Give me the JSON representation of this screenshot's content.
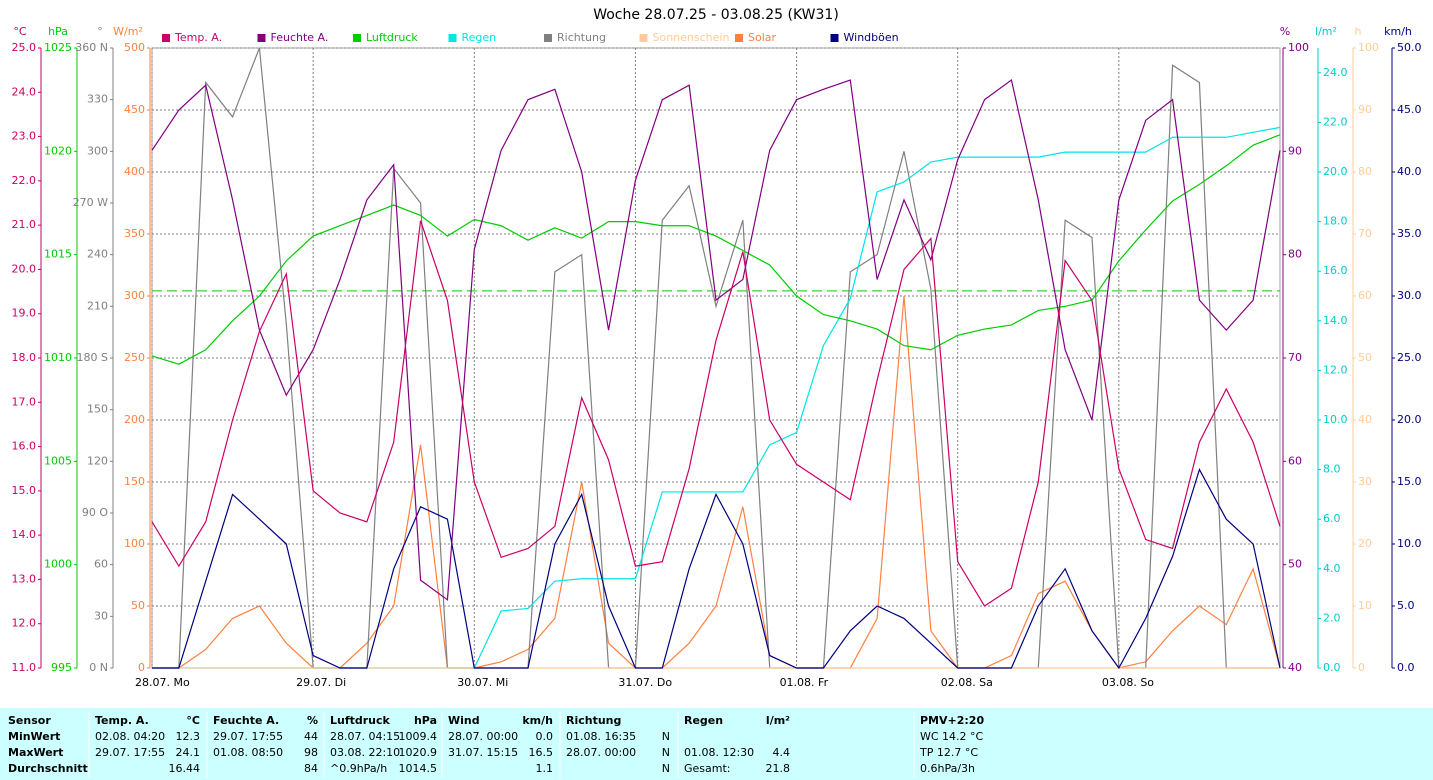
{
  "chart_data": {
    "type": "line",
    "title": "Woche 28.07.25 - 03.08.25 (KW31)",
    "xlim": [
      0,
      168
    ],
    "xticks": [
      {
        "value": 0,
        "label": "28.07. Mo"
      },
      {
        "value": 24,
        "label": "29.07. Di"
      },
      {
        "value": 48,
        "label": "30.07. Mi"
      },
      {
        "value": 72,
        "label": "31.07. Do"
      },
      {
        "value": 96,
        "label": "01.08. Fr"
      },
      {
        "value": 120,
        "label": "02.08. Sa"
      },
      {
        "value": 144,
        "label": "03.08. So"
      }
    ],
    "grid": true,
    "pressure_reference": 1013.25,
    "axes": [
      {
        "label": "°C",
        "color": "#cc0066",
        "lim": [
          11,
          25
        ],
        "ticks": [
          {
            "value": 11,
            "label": "11.0"
          },
          {
            "value": 12,
            "label": "12.0"
          },
          {
            "value": 13,
            "label": "13.0"
          },
          {
            "value": 14,
            "label": "14.0"
          },
          {
            "value": 15,
            "label": "15.0"
          },
          {
            "value": 16,
            "label": "16.0"
          },
          {
            "value": 17,
            "label": "17.0"
          },
          {
            "value": 18,
            "label": "18.0"
          },
          {
            "value": 19,
            "label": "19.0"
          },
          {
            "value": 20,
            "label": "20.0"
          },
          {
            "value": 21,
            "label": "21.0"
          },
          {
            "value": 22,
            "label": "22.0"
          },
          {
            "value": 23,
            "label": "23.0"
          },
          {
            "value": 24,
            "label": "24.0"
          },
          {
            "value": 25,
            "label": "25.0"
          }
        ]
      },
      {
        "label": "hPa",
        "color": "#00cc00",
        "lim": [
          995,
          1025
        ],
        "ticks": [
          995,
          1000,
          1005,
          1010,
          1015,
          1020,
          1025
        ]
      },
      {
        "label": "°",
        "color": "#808080",
        "lim": [
          0,
          360
        ],
        "ticks": [
          {
            "value": 0,
            "label": "0 N"
          },
          30,
          60,
          {
            "value": 90,
            "label": "90 O"
          },
          120,
          150,
          {
            "value": 180,
            "label": "180 S"
          },
          210,
          240,
          {
            "value": 270,
            "label": "270 W"
          },
          300,
          330,
          {
            "value": 360,
            "label": "360 N"
          }
        ]
      },
      {
        "label": "W/m²",
        "color": "#ff8040",
        "lim": [
          0,
          500
        ],
        "ticks": [
          0,
          50,
          100,
          150,
          200,
          250,
          300,
          350,
          400,
          450,
          500
        ]
      },
      {
        "label": "%",
        "color": "#800080",
        "lim": [
          40,
          100
        ],
        "ticks": [
          40,
          50,
          60,
          70,
          80,
          90,
          100
        ]
      },
      {
        "label": "l/m²",
        "color": "#00cccc",
        "lim": [
          0,
          25
        ],
        "ticks": [
          {
            "value": 0,
            "label": "0.0"
          },
          {
            "value": 2,
            "label": "2.0"
          },
          {
            "value": 4,
            "label": "4.0"
          },
          {
            "value": 6,
            "label": "6.0"
          },
          {
            "value": 8,
            "label": "8.0"
          },
          {
            "value": 10,
            "label": "10.0"
          },
          {
            "value": 12,
            "label": "12.0"
          },
          {
            "value": 14,
            "label": "14.0"
          },
          {
            "value": 16,
            "label": "16.0"
          },
          {
            "value": 18,
            "label": "18.0"
          },
          {
            "value": 20,
            "label": "20.0"
          },
          {
            "value": 22,
            "label": "22.0"
          },
          {
            "value": 24,
            "label": "24.0"
          }
        ]
      },
      {
        "label": "h",
        "color": "#ffcc99",
        "lim": [
          0,
          100
        ],
        "ticks": [
          0,
          10,
          20,
          30,
          40,
          50,
          60,
          70,
          80,
          90,
          100
        ]
      },
      {
        "label": "km/h",
        "color": "#000080",
        "lim": [
          0,
          50
        ],
        "ticks": [
          {
            "value": 0,
            "label": "0.0"
          },
          {
            "value": 5,
            "label": "5.0"
          },
          {
            "value": 10,
            "label": "10.0"
          },
          {
            "value": 15,
            "label": "15.0"
          },
          {
            "value": 20,
            "label": "20.0"
          },
          {
            "value": 25,
            "label": "25.0"
          },
          {
            "value": 30,
            "label": "30.0"
          },
          {
            "value": 35,
            "label": "35.0"
          },
          {
            "value": 40,
            "label": "40.0"
          },
          {
            "value": 45,
            "label": "45.0"
          },
          {
            "value": 50,
            "label": "50.0"
          }
        ]
      }
    ],
    "x": [
      0,
      4,
      8,
      12,
      16,
      20,
      24,
      28,
      32,
      36,
      40,
      44,
      48,
      52,
      56,
      60,
      64,
      68,
      72,
      76,
      80,
      84,
      88,
      92,
      96,
      100,
      104,
      108,
      112,
      116,
      120,
      124,
      128,
      132,
      136,
      140,
      144,
      148,
      152,
      156,
      160,
      164,
      168
    ],
    "series": [
      {
        "name": "Temp. A.",
        "color": "#cc0066",
        "axis": "°C",
        "values": [
          14.3,
          13.3,
          14.3,
          16.6,
          18.6,
          19.9,
          15.0,
          14.5,
          14.3,
          16.1,
          21.1,
          19.3,
          15.2,
          13.5,
          13.7,
          14.2,
          17.1,
          15.7,
          13.3,
          13.4,
          15.5,
          18.4,
          20.4,
          16.6,
          15.6,
          15.2,
          14.8,
          17.5,
          20.0,
          20.7,
          13.4,
          12.4,
          12.8,
          15.2,
          20.2,
          19.3,
          15.5,
          13.9,
          13.7,
          16.1,
          17.3,
          16.1,
          14.2
        ]
      },
      {
        "name": "Feuchte A.",
        "color": "#800080",
        "axis": "%",
        "values": [
          90.1,
          94,
          96.4,
          85.3,
          72.7,
          66.4,
          70.8,
          77.6,
          85.3,
          88.7,
          48.5,
          46.6,
          80.5,
          90.1,
          95,
          96,
          88,
          72.7,
          87.2,
          95,
          96.4,
          75.6,
          77.6,
          90.1,
          95,
          96,
          96.9,
          77.6,
          85.3,
          79.5,
          89.2,
          95,
          96.9,
          85.3,
          70.8,
          64,
          85.3,
          93,
          95,
          75.6,
          72.7,
          75.6,
          90.1
        ]
      },
      {
        "name": "Luftdruck",
        "color": "#00cc00",
        "axis": "hPa",
        "values": [
          1010.1,
          1009.7,
          1010.4,
          1011.8,
          1013.0,
          1014.7,
          1015.9,
          1016.4,
          1016.9,
          1017.4,
          1016.9,
          1015.9,
          1016.7,
          1016.4,
          1015.7,
          1016.3,
          1015.8,
          1016.6,
          1016.6,
          1016.4,
          1016.4,
          1015.9,
          1015.2,
          1014.5,
          1013.0,
          1012.1,
          1011.8,
          1011.4,
          1010.6,
          1010.4,
          1011.1,
          1011.4,
          1011.6,
          1012.3,
          1012.5,
          1012.8,
          1014.7,
          1016.2,
          1017.6,
          1018.4,
          1019.3,
          1020.3,
          1020.8
        ]
      },
      {
        "name": "Regen",
        "color": "#00e5e5",
        "axis": "l/m²",
        "values": [
          0,
          0,
          0,
          0,
          0,
          0,
          0,
          0,
          0,
          0,
          0,
          0,
          0,
          2.3,
          2.4,
          3.5,
          3.6,
          3.6,
          3.6,
          7.1,
          7.1,
          7.1,
          7.1,
          9.0,
          9.5,
          13.0,
          14.9,
          19.2,
          19.6,
          20.4,
          20.6,
          20.6,
          20.6,
          20.6,
          20.8,
          20.8,
          20.8,
          20.8,
          21.4,
          21.4,
          21.4,
          21.6,
          21.8
        ]
      },
      {
        "name": "Richtung",
        "color": "#808080",
        "axis": "°",
        "values": [
          0,
          0,
          340,
          320,
          360,
          200,
          0,
          0,
          0,
          290,
          270,
          0,
          0,
          0,
          0,
          230,
          240,
          0,
          0,
          260,
          280,
          210,
          260,
          0,
          0,
          0,
          230,
          240,
          300,
          220,
          0,
          0,
          0,
          0,
          260,
          250,
          0,
          0,
          350,
          340,
          0,
          0,
          0
        ]
      },
      {
        "name": "Sonnenschein",
        "color": "#ffcc99",
        "axis": "h",
        "values": [
          0,
          0,
          0,
          0,
          0,
          0,
          0,
          0,
          0,
          0,
          0,
          0,
          0,
          0,
          0,
          0,
          0,
          0,
          0,
          0,
          0,
          0,
          0,
          0,
          0,
          0,
          0,
          0,
          0,
          0,
          0,
          0,
          0,
          0,
          0,
          0,
          0,
          0,
          0,
          0,
          0,
          0,
          0
        ]
      },
      {
        "name": "Solar",
        "color": "#ff8040",
        "axis": "W/m²",
        "values": [
          0,
          0,
          15,
          40,
          50,
          20,
          0,
          0,
          20,
          50,
          180,
          0,
          0,
          5,
          15,
          40,
          150,
          20,
          0,
          0,
          20,
          50,
          130,
          10,
          0,
          0,
          0,
          40,
          300,
          30,
          0,
          0,
          10,
          60,
          70,
          30,
          0,
          5,
          30,
          50,
          35,
          80,
          0
        ]
      },
      {
        "name": "Windböen",
        "color": "#000080",
        "axis": "km/h",
        "values": [
          0,
          0,
          7,
          14,
          12,
          10,
          1,
          0,
          0,
          8,
          13,
          12,
          0,
          0,
          0,
          10,
          14,
          5,
          0,
          0,
          8,
          14,
          10,
          1,
          0,
          0,
          3,
          5,
          4,
          2,
          0,
          0,
          0,
          5,
          8,
          3,
          0,
          4,
          9,
          16,
          12,
          10,
          0
        ]
      }
    ]
  },
  "table": {
    "columns": [
      [
        "Sensor"
      ],
      [
        "Temp. A.",
        "°C"
      ],
      [
        "Feuchte A.",
        "%"
      ],
      [
        "Luftdruck",
        "hPa"
      ],
      [
        "Wind",
        "km/h"
      ],
      [
        "Richtung"
      ],
      [
        "Regen",
        "l/m²"
      ],
      [
        "PMV+2:20"
      ]
    ],
    "rows": [
      {
        "label": "MinWert",
        "cells": [
          [
            "02.08.  04:20",
            "12.3"
          ],
          [
            "29.07.  17:55",
            "44"
          ],
          [
            "28.07.  04:15",
            "1009.4"
          ],
          [
            "28.07.  00:00",
            "0.0"
          ],
          [
            "01.08.  16:35",
            "N"
          ],
          [],
          [
            "WC 14.2 °C"
          ]
        ]
      },
      {
        "label": "MaxWert",
        "cells": [
          [
            "29.07.  17:55",
            "24.1"
          ],
          [
            "01.08.  08:50",
            "98"
          ],
          [
            "03.08.  22:10",
            "1020.9"
          ],
          [
            "31.07.  15:15",
            "16.5"
          ],
          [
            "28.07.  00:00",
            "N"
          ],
          [
            "01.08.  12:30",
            "4.4"
          ],
          [
            "TP 12.7 °C"
          ]
        ]
      },
      {
        "label": "Durchschnitt",
        "cells": [
          [
            "16.44"
          ],
          [
            "84"
          ],
          [
            "^0.9hPa/h",
            "1014.5"
          ],
          [
            "1.1"
          ],
          [
            "N"
          ],
          [
            "Gesamt:",
            "21.8"
          ],
          [
            "0.6hPa/3h"
          ]
        ]
      }
    ]
  }
}
